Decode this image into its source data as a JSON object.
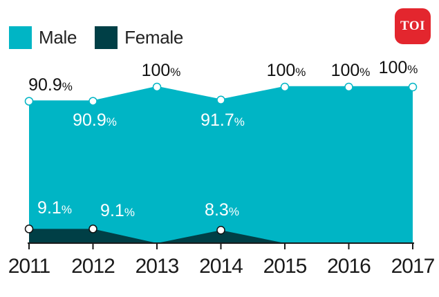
{
  "brand": {
    "logo_text": "TOI",
    "logo_color": "#e3262e"
  },
  "colors": {
    "male": "#00b5c5",
    "female": "#003f46"
  },
  "chart_data": {
    "type": "area",
    "x": [
      "2011",
      "2012",
      "2013",
      "2014",
      "2015",
      "2016",
      "2017"
    ],
    "ylim": [
      0,
      100
    ],
    "legend_position": "top-left",
    "series": [
      {
        "name": "Male",
        "values": [
          90.9,
          90.9,
          100,
          91.7,
          100,
          100,
          100
        ],
        "labels": [
          "90.9%",
          "90.9%",
          "100%",
          "91.7%",
          "100%",
          "100%",
          "100%"
        ]
      },
      {
        "name": "Female",
        "values": [
          9.1,
          9.1,
          0,
          8.3,
          0,
          0,
          0
        ],
        "labels": [
          "9.1%",
          "9.1%",
          "",
          "8.3%",
          "",
          "",
          ""
        ]
      }
    ]
  }
}
